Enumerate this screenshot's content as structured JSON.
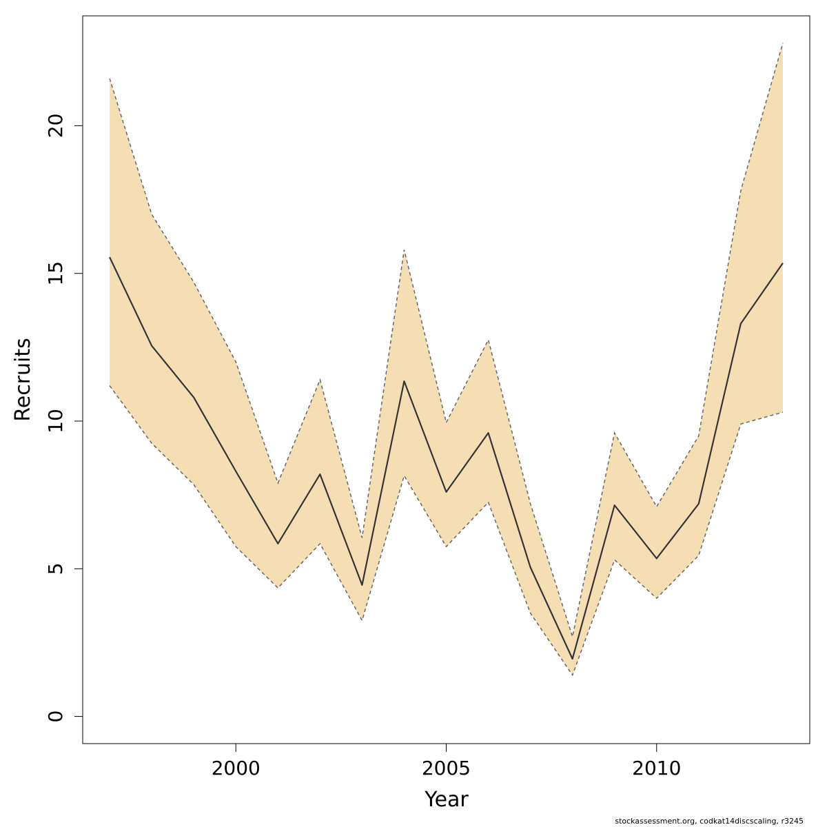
{
  "chart_data": {
    "type": "line",
    "title": "",
    "xlabel": "Year",
    "ylabel": "Recruits",
    "x": [
      1997,
      1998,
      1999,
      2000,
      2001,
      2002,
      2003,
      2004,
      2005,
      2006,
      2007,
      2008,
      2009,
      2010,
      2011,
      2012,
      2013
    ],
    "series": [
      {
        "role": "estimate",
        "values": [
          15.55,
          12.55,
          10.8,
          8.3,
          5.85,
          8.2,
          4.45,
          11.35,
          7.6,
          9.6,
          5.05,
          1.95,
          7.15,
          5.35,
          7.2,
          13.3,
          15.35
        ]
      },
      {
        "role": "upper",
        "values": [
          21.6,
          17.0,
          14.7,
          12.0,
          7.9,
          11.4,
          6.05,
          15.8,
          9.95,
          12.75,
          7.2,
          2.7,
          9.6,
          7.1,
          9.5,
          17.8,
          22.8
        ]
      },
      {
        "role": "lower",
        "values": [
          11.2,
          9.25,
          7.85,
          5.75,
          4.35,
          5.85,
          3.25,
          8.15,
          5.75,
          7.25,
          3.5,
          1.4,
          5.3,
          4.0,
          5.45,
          9.9,
          10.3
        ]
      }
    ],
    "x_ticks": [
      2000,
      2005,
      2010
    ],
    "y_ticks": [
      0,
      5,
      10,
      15,
      20
    ],
    "xlim": [
      1996.36,
      2013.64
    ],
    "ylim": [
      -0.92,
      23.72
    ],
    "band_fill": "#F5DEB3",
    "band_border": "#666666",
    "line_color": "#333333",
    "grid": false,
    "legend": "none"
  },
  "footer": "stockassessment.org, codkat14discscaling, r3245"
}
